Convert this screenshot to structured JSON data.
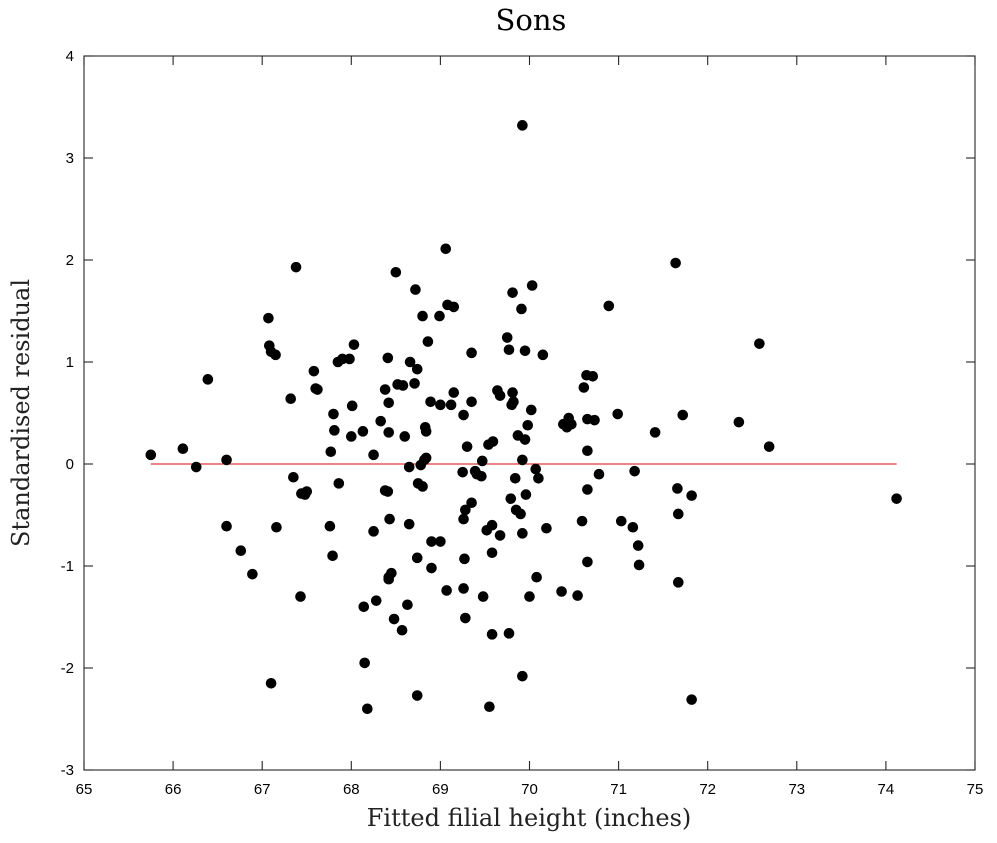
{
  "chart_data": {
    "type": "scatter",
    "title": "Sons",
    "xlabel": "Fitted filial height (inches)",
    "ylabel": "Standardised residual",
    "xlim": [
      65,
      75
    ],
    "ylim": [
      -3,
      4
    ],
    "xticks": [
      "65",
      "66",
      "67",
      "68",
      "69",
      "70",
      "71",
      "72",
      "73",
      "74",
      "75"
    ],
    "yticks": [
      "-3",
      "-2",
      "-1",
      "0",
      "1",
      "2",
      "3",
      "4"
    ],
    "grid": false,
    "reference_line": {
      "y": 0,
      "x_range": [
        65.75,
        74.12
      ],
      "color": "#e0393e"
    },
    "marker_color": "#000000",
    "points": [
      [
        65.75,
        0.09
      ],
      [
        66.11,
        0.15
      ],
      [
        66.26,
        -0.03
      ],
      [
        66.39,
        0.83
      ],
      [
        66.6,
        0.04
      ],
      [
        66.6,
        -0.61
      ],
      [
        66.76,
        -0.85
      ],
      [
        66.89,
        -1.08
      ],
      [
        67.07,
        1.43
      ],
      [
        67.08,
        1.16
      ],
      [
        67.1,
        1.1
      ],
      [
        67.1,
        -2.15
      ],
      [
        67.15,
        1.07
      ],
      [
        67.16,
        -0.62
      ],
      [
        67.32,
        0.64
      ],
      [
        67.35,
        -0.13
      ],
      [
        67.38,
        1.93
      ],
      [
        67.43,
        -1.3
      ],
      [
        67.44,
        -0.29
      ],
      [
        67.48,
        -0.3
      ],
      [
        67.5,
        -0.27
      ],
      [
        67.58,
        0.91
      ],
      [
        67.6,
        0.74
      ],
      [
        67.62,
        0.73
      ],
      [
        67.76,
        -0.61
      ],
      [
        67.77,
        0.12
      ],
      [
        67.79,
        -0.9
      ],
      [
        67.8,
        0.49
      ],
      [
        67.81,
        0.33
      ],
      [
        67.85,
        1.0
      ],
      [
        67.86,
        -0.19
      ],
      [
        67.9,
        1.03
      ],
      [
        67.98,
        1.03
      ],
      [
        68.0,
        0.27
      ],
      [
        68.01,
        0.57
      ],
      [
        68.03,
        1.17
      ],
      [
        68.13,
        0.32
      ],
      [
        68.14,
        -1.4
      ],
      [
        68.15,
        -1.95
      ],
      [
        68.18,
        -2.4
      ],
      [
        68.25,
        0.09
      ],
      [
        68.25,
        -0.66
      ],
      [
        68.28,
        -1.34
      ],
      [
        68.33,
        0.42
      ],
      [
        68.38,
        -0.26
      ],
      [
        68.38,
        0.73
      ],
      [
        68.41,
        1.04
      ],
      [
        68.41,
        -0.27
      ],
      [
        68.42,
        0.31
      ],
      [
        68.42,
        0.6
      ],
      [
        68.42,
        -1.13
      ],
      [
        68.42,
        -1.11
      ],
      [
        68.43,
        -0.54
      ],
      [
        68.45,
        -1.07
      ],
      [
        68.48,
        -1.52
      ],
      [
        68.5,
        1.88
      ],
      [
        68.52,
        0.78
      ],
      [
        68.57,
        -1.63
      ],
      [
        68.58,
        0.77
      ],
      [
        68.6,
        0.27
      ],
      [
        68.63,
        -1.38
      ],
      [
        68.65,
        -0.03
      ],
      [
        68.65,
        -0.59
      ],
      [
        68.66,
        1.0
      ],
      [
        68.71,
        0.79
      ],
      [
        68.72,
        1.71
      ],
      [
        68.74,
        0.93
      ],
      [
        68.74,
        -0.92
      ],
      [
        68.74,
        -2.27
      ],
      [
        68.75,
        -0.19
      ],
      [
        68.78,
        -0.01
      ],
      [
        68.8,
        -0.22
      ],
      [
        68.8,
        1.45
      ],
      [
        68.82,
        0.04
      ],
      [
        68.83,
        0.36
      ],
      [
        68.84,
        0.06
      ],
      [
        68.84,
        0.32
      ],
      [
        68.86,
        1.2
      ],
      [
        68.89,
        0.61
      ],
      [
        68.9,
        -1.02
      ],
      [
        68.9,
        -0.76
      ],
      [
        68.99,
        1.45
      ],
      [
        69.0,
        0.58
      ],
      [
        69.0,
        -0.76
      ],
      [
        69.06,
        2.11
      ],
      [
        69.07,
        -1.24
      ],
      [
        69.08,
        1.56
      ],
      [
        69.12,
        0.58
      ],
      [
        69.15,
        1.54
      ],
      [
        69.15,
        0.7
      ],
      [
        69.25,
        -0.08
      ],
      [
        69.26,
        -1.22
      ],
      [
        69.26,
        -0.54
      ],
      [
        69.26,
        0.48
      ],
      [
        69.27,
        -0.93
      ],
      [
        69.28,
        -1.51
      ],
      [
        69.28,
        -0.45
      ],
      [
        69.3,
        0.17
      ],
      [
        69.35,
        0.61
      ],
      [
        69.35,
        -0.38
      ],
      [
        69.35,
        1.09
      ],
      [
        69.39,
        -0.07
      ],
      [
        69.41,
        -0.1
      ],
      [
        69.46,
        -0.12
      ],
      [
        69.47,
        0.03
      ],
      [
        69.48,
        -1.3
      ],
      [
        69.52,
        -0.65
      ],
      [
        69.54,
        0.19
      ],
      [
        69.55,
        -2.38
      ],
      [
        69.58,
        -0.87
      ],
      [
        69.58,
        -1.67
      ],
      [
        69.58,
        -0.6
      ],
      [
        69.59,
        0.22
      ],
      [
        69.64,
        0.72
      ],
      [
        69.67,
        0.67
      ],
      [
        69.67,
        -0.7
      ],
      [
        69.75,
        1.24
      ],
      [
        69.77,
        -1.66
      ],
      [
        69.77,
        1.12
      ],
      [
        69.79,
        -0.34
      ],
      [
        69.8,
        0.58
      ],
      [
        69.81,
        1.68
      ],
      [
        69.81,
        0.7
      ],
      [
        69.82,
        0.61
      ],
      [
        69.84,
        -0.14
      ],
      [
        69.85,
        -0.45
      ],
      [
        69.87,
        0.28
      ],
      [
        69.9,
        -0.49
      ],
      [
        69.91,
        1.52
      ],
      [
        69.92,
        0.04
      ],
      [
        69.92,
        3.32
      ],
      [
        69.92,
        -2.08
      ],
      [
        69.92,
        -0.68
      ],
      [
        69.95,
        1.11
      ],
      [
        69.95,
        0.24
      ],
      [
        69.96,
        -0.3
      ],
      [
        69.98,
        0.38
      ],
      [
        70.0,
        -1.3
      ],
      [
        70.02,
        0.53
      ],
      [
        70.03,
        1.75
      ],
      [
        70.07,
        -0.05
      ],
      [
        70.08,
        -1.11
      ],
      [
        70.1,
        -0.14
      ],
      [
        70.15,
        1.07
      ],
      [
        70.19,
        -0.63
      ],
      [
        70.36,
        -1.25
      ],
      [
        70.38,
        0.39
      ],
      [
        70.42,
        0.36
      ],
      [
        70.44,
        0.45
      ],
      [
        70.47,
        0.39
      ],
      [
        70.54,
        -1.29
      ],
      [
        70.59,
        -0.56
      ],
      [
        70.61,
        0.75
      ],
      [
        70.64,
        0.87
      ],
      [
        70.65,
        0.13
      ],
      [
        70.65,
        -0.25
      ],
      [
        70.65,
        -0.96
      ],
      [
        70.65,
        0.44
      ],
      [
        70.71,
        0.86
      ],
      [
        70.73,
        0.43
      ],
      [
        70.78,
        -0.1
      ],
      [
        70.89,
        1.55
      ],
      [
        70.99,
        0.49
      ],
      [
        71.03,
        -0.56
      ],
      [
        71.16,
        -0.62
      ],
      [
        71.18,
        -0.07
      ],
      [
        71.22,
        -0.8
      ],
      [
        71.23,
        -0.99
      ],
      [
        71.41,
        0.31
      ],
      [
        71.64,
        1.97
      ],
      [
        71.66,
        -0.24
      ],
      [
        71.67,
        -0.49
      ],
      [
        71.67,
        -1.16
      ],
      [
        71.72,
        0.48
      ],
      [
        71.82,
        -0.31
      ],
      [
        71.82,
        -2.31
      ],
      [
        72.35,
        0.41
      ],
      [
        72.58,
        1.18
      ],
      [
        72.69,
        0.17
      ],
      [
        74.12,
        -0.34
      ]
    ]
  }
}
